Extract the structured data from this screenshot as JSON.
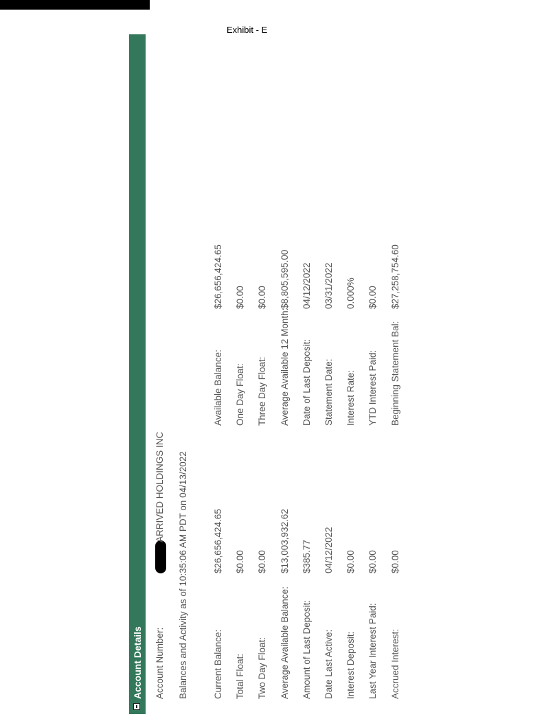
{
  "exhibit_label": "Exhibit - E",
  "header": {
    "title": "Account Details",
    "toggle_icon": "collapse-minus-icon",
    "color": "#33785a"
  },
  "account": {
    "label": "Account Number:",
    "name": "ARRIVED HOLDINGS INC"
  },
  "as_of": "Balances and Activity as of 10:35:06 AM PDT on 04/13/2022",
  "left_rows": [
    {
      "label": "Current Balance:",
      "value": "$26,656,424.65"
    },
    {
      "label": "Total Float:",
      "value": "$0.00"
    },
    {
      "label": "Two Day Float:",
      "value": "$0.00"
    },
    {
      "label": "Average Available Balance:",
      "value": "$13,003,932.62"
    },
    {
      "label": "Amount of Last Deposit:",
      "value": "$385.77"
    },
    {
      "label": "Date Last Active:",
      "value": "04/12/2022"
    },
    {
      "label": "Interest Deposit:",
      "value": "$0.00"
    },
    {
      "label": "Last Year Interest Paid:",
      "value": "$0.00"
    },
    {
      "label": "Accrued Interest:",
      "value": "$0.00"
    }
  ],
  "right_rows": [
    {
      "label": "Available Balance:",
      "value": "$26,656,424.65"
    },
    {
      "label": "One Day Float:",
      "value": "$0.00"
    },
    {
      "label": "Three Day Float:",
      "value": "$0.00"
    },
    {
      "label": "Average Available 12 Month:",
      "value": "$8,805,595.00"
    },
    {
      "label": "Date of Last Deposit:",
      "value": "04/12/2022"
    },
    {
      "label": "Statement Date:",
      "value": "03/31/2022"
    },
    {
      "label": "Interest Rate:",
      "value": "0.000%"
    },
    {
      "label": "YTD Interest Paid:",
      "value": "$0.00"
    },
    {
      "label": "Beginning Statement Bal:",
      "value": "$27,258,754.60"
    }
  ]
}
